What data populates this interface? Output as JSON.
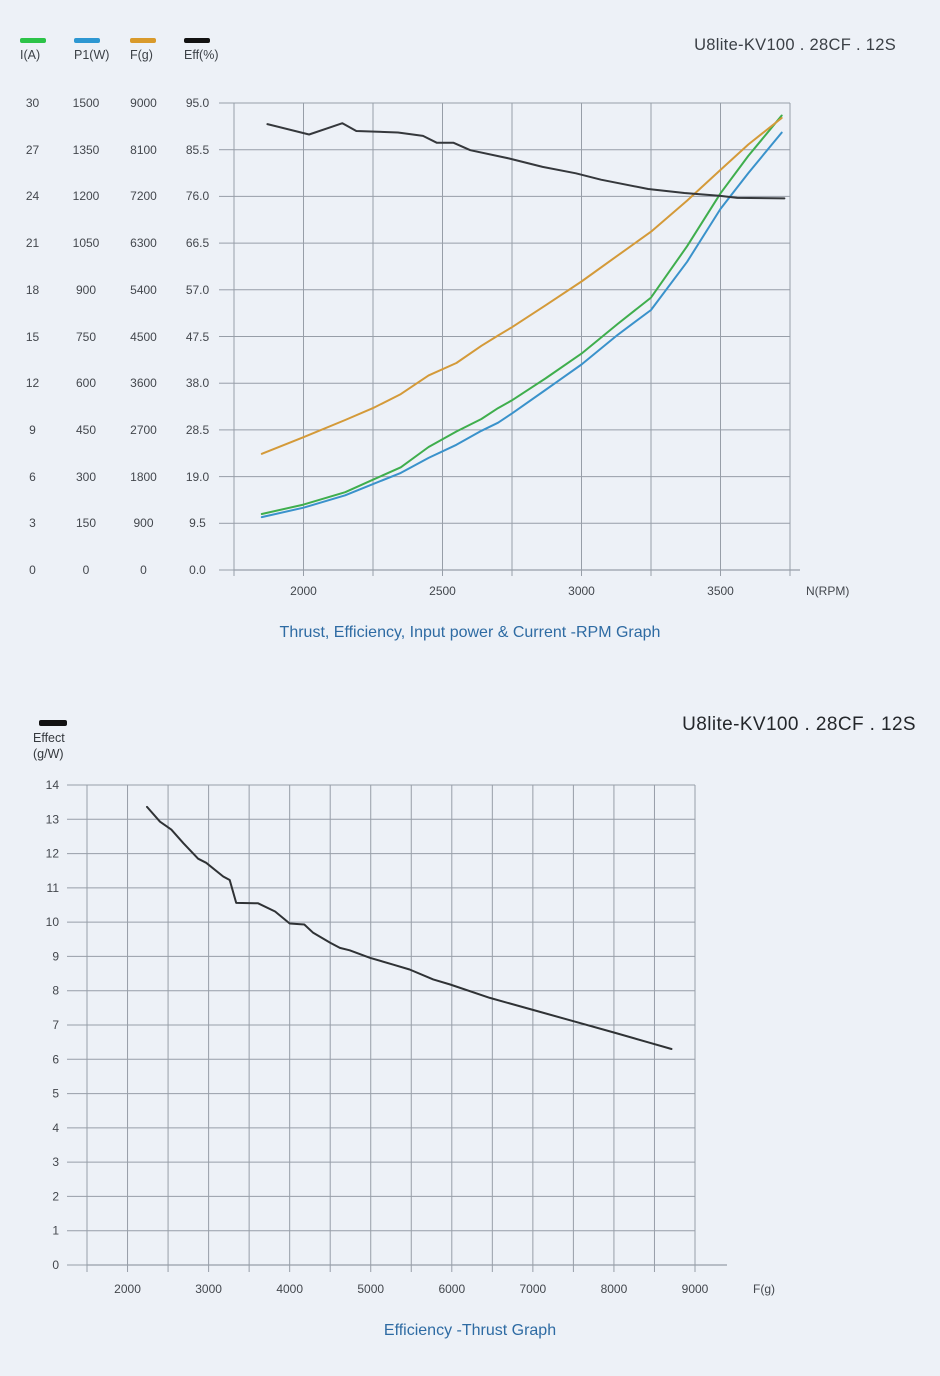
{
  "ui": {
    "top": {
      "model_title": "U8lite-KV100 . 28CF . 12S",
      "legend": [
        {
          "label": "I(A)",
          "color": "#2cc348"
        },
        {
          "label": "P1(W)",
          "color": "#2d97d2"
        },
        {
          "label": "F(g)",
          "color": "#d99a2b"
        },
        {
          "label": "Eff(%)",
          "color": "#121212"
        }
      ]
    },
    "bottom": {
      "model_title": "U8lite-KV100 . 28CF . 12S",
      "legend_color": "#121212",
      "legend_line1": "Effect",
      "legend_line2": "(g/W)"
    },
    "colors": {
      "background": "#edf1f7",
      "grid": "#979ea8",
      "caption_blue": "#2e6ba3"
    }
  },
  "chart_data": [
    {
      "type": "line",
      "title": "U8lite-KV100 . 28CF . 12S",
      "caption": "Thrust, Efficiency, Input power & Current -RPM Graph",
      "xlabel": "N(RPM)",
      "xlim": [
        1750,
        3750
      ],
      "x_grid_step": 250,
      "x_tick_labels": [
        2000,
        2500,
        3000,
        3500
      ],
      "grid": true,
      "legend_position": "top-left",
      "y_axes": [
        {
          "name": "I(A)",
          "max": 30,
          "ticks": [
            "30",
            "27",
            "24",
            "21",
            "18",
            "15",
            "12",
            "9",
            "6",
            "3",
            "0"
          ]
        },
        {
          "name": "P1(W)",
          "max": 1500,
          "ticks": [
            "1500",
            "1350",
            "1200",
            "1050",
            "900",
            "750",
            "600",
            "450",
            "300",
            "150",
            "0"
          ]
        },
        {
          "name": "F(g)",
          "max": 9000,
          "ticks": [
            "9000",
            "8100",
            "7200",
            "6300",
            "5400",
            "4500",
            "3600",
            "2700",
            "1800",
            "900",
            "0"
          ]
        },
        {
          "name": "Eff(%)",
          "max": 95,
          "ticks": [
            "95.0",
            "85.5",
            "76.0",
            "66.5",
            "57.0",
            "47.5",
            "38.0",
            "28.5",
            "19.0",
            "9.5",
            "0.0"
          ]
        }
      ],
      "series": [
        {
          "name": "I(A)",
          "color": "#3fae4d",
          "y_max": 30,
          "x": [
            1850,
            2000,
            2150,
            2250,
            2350,
            2450,
            2550,
            2640,
            2700,
            2750,
            2870,
            3000,
            3130,
            3250,
            3380,
            3500,
            3600,
            3720
          ],
          "values": [
            3.6,
            4.2,
            5.0,
            5.8,
            6.6,
            7.9,
            8.9,
            9.7,
            10.4,
            10.9,
            12.3,
            13.9,
            15.8,
            17.5,
            20.8,
            24.2,
            26.6,
            29.2
          ]
        },
        {
          "name": "P1(W)",
          "color": "#3a92cb",
          "y_max": 1500,
          "x": [
            1850,
            2000,
            2150,
            2250,
            2350,
            2450,
            2550,
            2640,
            2700,
            2750,
            2870,
            3000,
            3130,
            3250,
            3380,
            3500,
            3600,
            3720
          ],
          "values": [
            170,
            200,
            240,
            276,
            312,
            360,
            402,
            447,
            473,
            503,
            578,
            660,
            755,
            835,
            990,
            1160,
            1275,
            1405
          ]
        },
        {
          "name": "F(g)",
          "color": "#d49a39",
          "y_max": 9000,
          "x": [
            1850,
            2000,
            2150,
            2250,
            2350,
            2450,
            2550,
            2640,
            2700,
            2750,
            2870,
            3000,
            3130,
            3250,
            3380,
            3500,
            3600,
            3720
          ],
          "values": [
            2240,
            2560,
            2890,
            3120,
            3390,
            3750,
            3990,
            4320,
            4520,
            4680,
            5100,
            5560,
            6060,
            6520,
            7120,
            7710,
            8200,
            8710
          ]
        },
        {
          "name": "Eff(%)",
          "color": "#35383c",
          "y_max": 95,
          "x": [
            1870,
            2020,
            2140,
            2190,
            2340,
            2430,
            2480,
            2540,
            2600,
            2740,
            2860,
            2980,
            3070,
            3240,
            3370,
            3500,
            3560,
            3730
          ],
          "values": [
            90.7,
            88.6,
            90.9,
            89.3,
            89.0,
            88.3,
            86.9,
            86.9,
            85.4,
            83.7,
            82.0,
            80.7,
            79.4,
            77.5,
            76.7,
            76.1,
            75.7,
            75.6
          ]
        }
      ]
    },
    {
      "type": "line",
      "title": "U8lite-KV100 . 28CF . 12S",
      "caption": "Efficiency -Thrust Graph",
      "xlabel": "F(g)",
      "ylabel": "Effect (g/W)",
      "xlim": [
        1500,
        9000
      ],
      "x_grid_step": 500,
      "x_tick_labels": [
        2000,
        3000,
        4000,
        5000,
        6000,
        7000,
        8000,
        9000
      ],
      "ylim": [
        0,
        14
      ],
      "y_ticks": [
        "14",
        "13",
        "12",
        "11",
        "10",
        "9",
        "8",
        "7",
        "6",
        "5",
        "4",
        "3",
        "2",
        "1",
        "0"
      ],
      "grid": true,
      "series": [
        {
          "name": "Effect (g/W)",
          "color": "#2f3235",
          "x": [
            2240,
            2400,
            2540,
            2690,
            2870,
            2970,
            3180,
            3260,
            3340,
            3610,
            3820,
            4000,
            4180,
            4290,
            4500,
            4620,
            4740,
            4990,
            5280,
            5480,
            5770,
            5980,
            6470,
            7000,
            7500,
            8000,
            8400,
            8710
          ],
          "values": [
            13.36,
            12.93,
            12.7,
            12.3,
            11.85,
            11.73,
            11.33,
            11.23,
            10.56,
            10.55,
            10.31,
            9.96,
            9.93,
            9.69,
            9.4,
            9.25,
            9.18,
            8.96,
            8.76,
            8.62,
            8.33,
            8.18,
            7.79,
            7.44,
            7.11,
            6.78,
            6.51,
            6.3
          ]
        }
      ]
    }
  ]
}
